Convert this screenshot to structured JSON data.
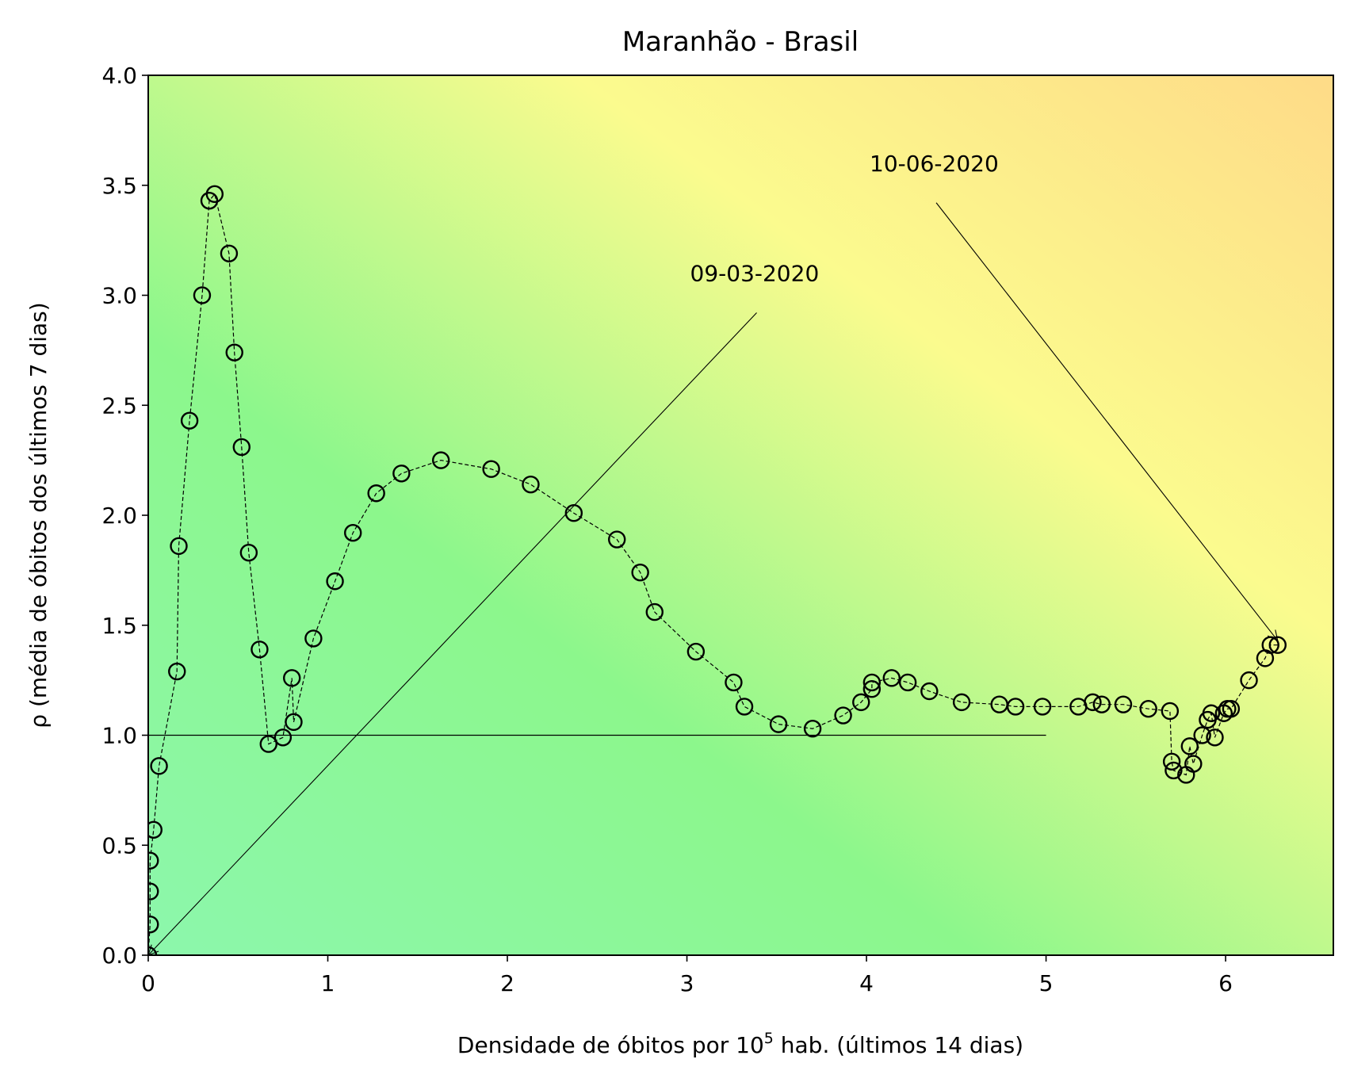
{
  "chart_data": {
    "type": "scatter",
    "title": "Maranhão - Brasil",
    "xlabel_main": "Densidade de óbitos por 10",
    "xlabel_sup": "5",
    "xlabel_tail": " hab. (últimos 14 dias)",
    "ylabel": "ρ (média de óbitos dos últimos 7 dias)",
    "xlim": [
      0,
      6.6
    ],
    "ylim": [
      0,
      4.0
    ],
    "x_ticks": [
      0,
      1,
      2,
      3,
      4,
      5,
      6
    ],
    "x_tick_labels": [
      "0",
      "1",
      "2",
      "3",
      "4",
      "5",
      "6"
    ],
    "y_ticks": [
      0,
      0.5,
      1.0,
      1.5,
      2.0,
      2.5,
      3.0,
      3.5,
      4.0
    ],
    "y_tick_labels": [
      "0.0",
      "0.5",
      "1.0",
      "1.5",
      "2.0",
      "2.5",
      "3.0",
      "3.5",
      "4.0"
    ],
    "grid": false,
    "reference_line": {
      "x": [
        0,
        5
      ],
      "y": [
        1.0,
        1.0
      ]
    },
    "series": [
      {
        "x": [
          0.0,
          0.01,
          0.01,
          0.01,
          0.03,
          0.06,
          0.16,
          0.17,
          0.23,
          0.3,
          0.34,
          0.37,
          0.45,
          0.48,
          0.52,
          0.56,
          0.62,
          0.67,
          0.75,
          0.8,
          0.81,
          0.92,
          1.04,
          1.14,
          1.27,
          1.41,
          1.63,
          1.91,
          2.13,
          2.37,
          2.61,
          2.74,
          2.82,
          3.05,
          3.26,
          3.32,
          3.51,
          3.7,
          3.87,
          3.97,
          4.03,
          4.03,
          4.14,
          4.23,
          4.35,
          4.53,
          4.74,
          4.83,
          4.98,
          5.18,
          5.26,
          5.31,
          5.43,
          5.57,
          5.69,
          5.7,
          5.71,
          5.78,
          5.8,
          5.82,
          5.87,
          5.9,
          5.92,
          5.94,
          5.99,
          6.01,
          6.03,
          6.13,
          6.22,
          6.25,
          6.29
        ],
        "y": [
          0.0,
          0.14,
          0.29,
          0.43,
          0.57,
          0.86,
          1.29,
          1.86,
          2.43,
          3.0,
          3.43,
          3.46,
          3.19,
          2.74,
          2.31,
          1.83,
          1.39,
          0.96,
          0.99,
          1.26,
          1.06,
          1.44,
          1.7,
          1.92,
          2.1,
          2.19,
          2.25,
          2.21,
          2.14,
          2.01,
          1.89,
          1.74,
          1.56,
          1.38,
          1.24,
          1.13,
          1.05,
          1.03,
          1.09,
          1.15,
          1.21,
          1.24,
          1.26,
          1.24,
          1.2,
          1.15,
          1.14,
          1.13,
          1.13,
          1.13,
          1.15,
          1.14,
          1.14,
          1.12,
          1.11,
          0.88,
          0.84,
          0.82,
          0.95,
          0.87,
          1.0,
          1.07,
          1.1,
          0.99,
          1.1,
          1.12,
          1.12,
          1.25,
          1.35,
          1.41,
          1.41
        ]
      }
    ],
    "annotations": [
      {
        "text": "09-03-2020",
        "xy": [
          0.0,
          0.0
        ],
        "xytext": [
          3.0,
          3.0
        ]
      },
      {
        "text": "10-06-2020",
        "xy": [
          6.29,
          1.43
        ],
        "xytext": [
          4.0,
          3.5
        ]
      }
    ]
  }
}
